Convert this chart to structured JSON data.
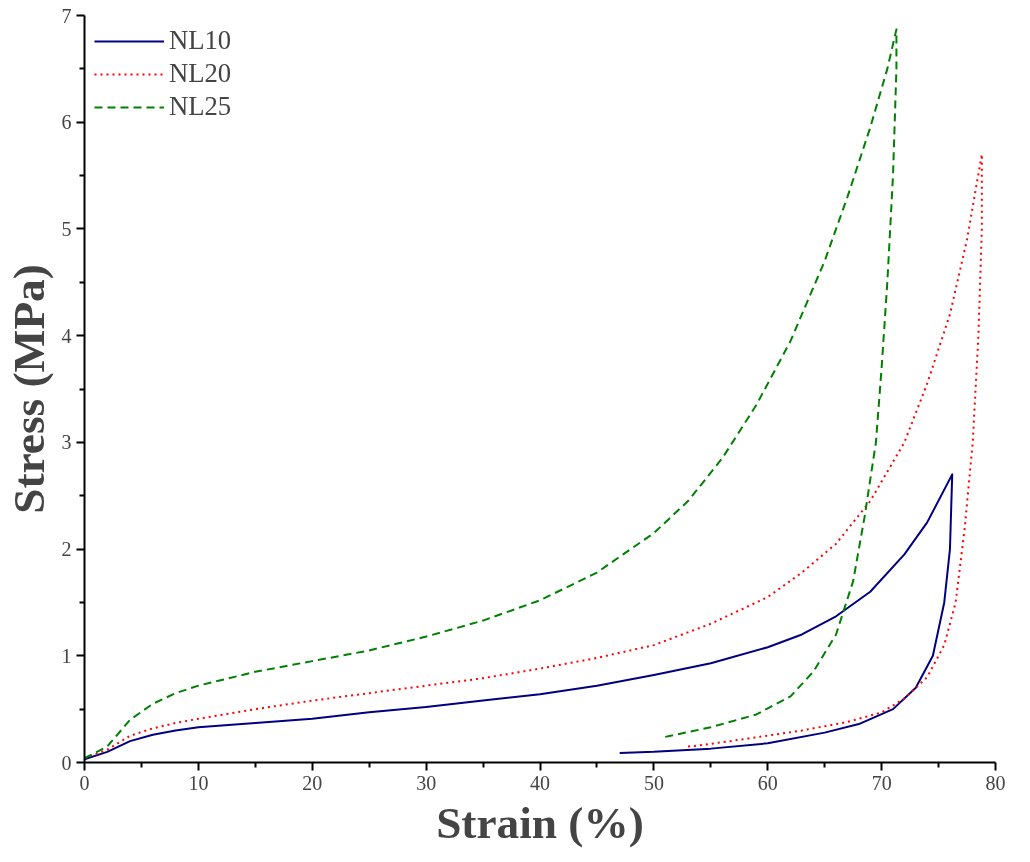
{
  "chart_data": {
    "type": "line",
    "xlabel": "Strain (%)",
    "ylabel": "Stress (MPa)",
    "xlim": [
      0,
      80
    ],
    "ylim": [
      0,
      7
    ],
    "xticks": [
      0,
      {
        "value": 5,
        "label": null
      },
      10,
      {
        "value": 15,
        "label": null
      },
      20,
      {
        "value": 25,
        "label": null
      },
      30,
      {
        "value": 35,
        "label": null
      },
      40,
      {
        "value": 45,
        "label": null
      },
      50,
      {
        "value": 55,
        "label": null
      },
      60,
      {
        "value": 65,
        "label": null
      },
      70,
      {
        "value": 75,
        "label": null
      },
      80
    ],
    "yticks": [
      0,
      {
        "value": 0.5,
        "label": null
      },
      1,
      {
        "value": 1.5,
        "label": null
      },
      2,
      {
        "value": 2.5,
        "label": null
      },
      3,
      {
        "value": 3.5,
        "label": null
      },
      4,
      {
        "value": 4.5,
        "label": null
      },
      5,
      {
        "value": 5.5,
        "label": null
      },
      6,
      {
        "value": 6.5,
        "label": null
      },
      7
    ],
    "grid": false,
    "legend": "top left",
    "marker": "none",
    "series": [
      {
        "name": "NL10",
        "color": "#000080",
        "line_style": "solid",
        "x": [
          0,
          2,
          4,
          6,
          8,
          10,
          15,
          20,
          25,
          30,
          35,
          40,
          45,
          50,
          55,
          60,
          63,
          66,
          69,
          72,
          74,
          76.2,
          76,
          75.5,
          74.5,
          73,
          71,
          68,
          65,
          60,
          55,
          50,
          47
        ],
        "values": [
          0.03,
          0.1,
          0.2,
          0.26,
          0.3,
          0.33,
          0.37,
          0.41,
          0.47,
          0.52,
          0.58,
          0.64,
          0.72,
          0.82,
          0.93,
          1.08,
          1.2,
          1.37,
          1.6,
          1.95,
          2.25,
          2.7,
          2.0,
          1.5,
          1.0,
          0.7,
          0.5,
          0.36,
          0.28,
          0.18,
          0.13,
          0.1,
          0.09
        ]
      },
      {
        "name": "NL20",
        "color": "#ff0000",
        "line_style": "dotted",
        "x": [
          0,
          2,
          4,
          6,
          8,
          10,
          15,
          20,
          25,
          30,
          35,
          40,
          45,
          50,
          55,
          60,
          63,
          66,
          69,
          72,
          74,
          76,
          77.5,
          78.8,
          78.8,
          78.5,
          78,
          77.3,
          76.5,
          75.5,
          74,
          72,
          70,
          67,
          63,
          58,
          54,
          53
        ],
        "values": [
          0.04,
          0.12,
          0.25,
          0.32,
          0.37,
          0.41,
          0.5,
          0.58,
          0.65,
          0.72,
          0.79,
          0.88,
          0.98,
          1.1,
          1.3,
          1.55,
          1.78,
          2.05,
          2.45,
          3.0,
          3.55,
          4.2,
          4.9,
          5.7,
          5.0,
          4.0,
          3.0,
          2.2,
          1.5,
          1.1,
          0.8,
          0.6,
          0.47,
          0.38,
          0.3,
          0.22,
          0.16,
          0.15
        ]
      },
      {
        "name": "NL25",
        "color": "#008000",
        "line_style": "dashed",
        "x": [
          0,
          2,
          4,
          6,
          8,
          10,
          15,
          20,
          25,
          30,
          35,
          40,
          45,
          50,
          53,
          56,
          59,
          62,
          65,
          67,
          69,
          70.5,
          71.3,
          71.3,
          71,
          70.5,
          70,
          69.5,
          68.5,
          67.5,
          66,
          64,
          62,
          59,
          55,
          51
        ],
        "values": [
          0.04,
          0.15,
          0.4,
          0.55,
          0.65,
          0.72,
          0.85,
          0.95,
          1.05,
          1.18,
          1.33,
          1.52,
          1.78,
          2.15,
          2.45,
          2.85,
          3.35,
          3.95,
          4.7,
          5.3,
          5.95,
          6.5,
          6.87,
          6.5,
          5.5,
          4.5,
          3.7,
          3.0,
          2.3,
          1.7,
          1.2,
          0.85,
          0.62,
          0.45,
          0.33,
          0.24
        ]
      }
    ]
  }
}
